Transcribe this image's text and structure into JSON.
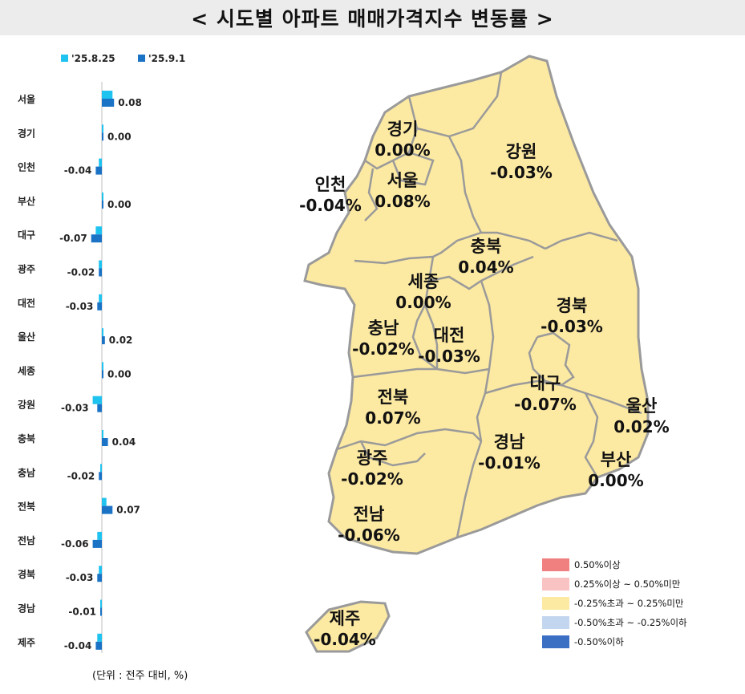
{
  "title": "< 시도별 아파트 매매가격지수 변동률 >",
  "unit_note": "(단위 : 전주 대비, %)",
  "colors": {
    "prev_week": "#1ec3f0",
    "curr_week": "#1b73c6",
    "map_fill": "#fce9a2",
    "map_stroke": "#9a9a9a"
  },
  "chart_data": {
    "type": "bar",
    "orientation": "horizontal",
    "categories": [
      "서울",
      "경기",
      "인천",
      "부산",
      "대구",
      "광주",
      "대전",
      "울산",
      "세종",
      "강원",
      "충북",
      "충남",
      "전북",
      "전남",
      "경북",
      "경남",
      "제주"
    ],
    "series": [
      {
        "name": "'25.8.25",
        "values": [
          0.07,
          0.01,
          -0.02,
          0.0,
          -0.04,
          -0.02,
          -0.02,
          0.01,
          0.01,
          -0.06,
          0.0,
          -0.01,
          0.03,
          -0.03,
          -0.02,
          -0.01,
          -0.03
        ]
      },
      {
        "name": "'25.9.1",
        "values": [
          0.08,
          0.0,
          -0.04,
          0.0,
          -0.07,
          -0.02,
          -0.03,
          0.02,
          0.0,
          -0.03,
          0.04,
          -0.02,
          0.07,
          -0.06,
          -0.03,
          -0.01,
          -0.04
        ]
      }
    ],
    "value_labels": [
      "0.08",
      "0.00",
      "-0.04",
      "0.00",
      "-0.07",
      "-0.02",
      "-0.03",
      "0.02",
      "0.00",
      "-0.03",
      "0.04",
      "-0.02",
      "0.07",
      "-0.06",
      "-0.03",
      "-0.01",
      "-0.04"
    ],
    "legend": "top"
  },
  "map_regions": [
    {
      "name": "경기",
      "value": "0.00%"
    },
    {
      "name": "강원",
      "value": "-0.03%"
    },
    {
      "name": "인천",
      "value": "-0.04%"
    },
    {
      "name": "서울",
      "value": "0.08%"
    },
    {
      "name": "충북",
      "value": "0.04%"
    },
    {
      "name": "세종",
      "value": "0.00%"
    },
    {
      "name": "경북",
      "value": "-0.03%"
    },
    {
      "name": "충남",
      "value": "-0.02%"
    },
    {
      "name": "대전",
      "value": "-0.03%"
    },
    {
      "name": "대구",
      "value": "-0.07%"
    },
    {
      "name": "울산",
      "value": "0.02%"
    },
    {
      "name": "전북",
      "value": "0.07%"
    },
    {
      "name": "경남",
      "value": "-0.01%"
    },
    {
      "name": "부산",
      "value": "0.00%"
    },
    {
      "name": "광주",
      "value": "-0.02%"
    },
    {
      "name": "전남",
      "value": "-0.06%"
    },
    {
      "name": "제주",
      "value": "-0.04%"
    }
  ],
  "color_legend": [
    {
      "label": "0.50%이상",
      "color": "#f08080"
    },
    {
      "label": "0.25%이상 ~ 0.50%미만",
      "color": "#f9c3c3"
    },
    {
      "label": "-0.25%초과 ~ 0.25%미만",
      "color": "#fce9a2"
    },
    {
      "label": "-0.50%초과 ~ -0.25%이하",
      "color": "#c3d6ef"
    },
    {
      "label": "-0.50%이하",
      "color": "#3a6fc4"
    }
  ]
}
